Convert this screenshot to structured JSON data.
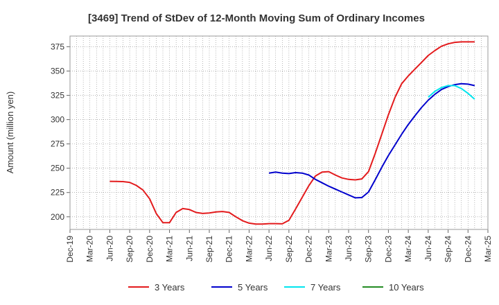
{
  "chart_data": {
    "type": "line",
    "title": "[3469]  Trend of StDev of 12-Month Moving Sum of Ordinary Incomes",
    "xlabel": "",
    "ylabel": "Amount (million yen)",
    "ylim": [
      187,
      386
    ],
    "yticks": [
      200,
      225,
      250,
      275,
      300,
      325,
      350,
      375
    ],
    "xtick_labels": [
      "Dec-19",
      "Mar-20",
      "Jun-20",
      "Sep-20",
      "Dec-20",
      "Mar-21",
      "Jun-21",
      "Sep-21",
      "Dec-21",
      "Mar-22",
      "Jun-22",
      "Sep-22",
      "Dec-22",
      "Mar-23",
      "Jun-23",
      "Sep-23",
      "Dec-23",
      "Mar-24",
      "Jun-24",
      "Sep-24",
      "Dec-24",
      "Mar-25"
    ],
    "x_start": "Dec-19",
    "grid": true,
    "legend_position": "bottom",
    "series": [
      {
        "name": "3 Years",
        "color": "#e31a1c",
        "start": "Jun-20",
        "values": [
          236.5,
          236.4,
          236.2,
          235.4,
          232.3,
          227.5,
          218.5,
          203.5,
          194,
          194,
          204.5,
          208.5,
          207.5,
          204.5,
          203.5,
          204,
          205,
          205.5,
          204.5,
          200,
          196,
          193.5,
          192.5,
          192.5,
          193,
          193,
          192.8,
          196.5,
          208,
          220,
          232,
          242,
          246,
          246.5,
          243,
          240,
          238.5,
          238,
          239,
          246.5,
          265,
          285,
          305,
          323,
          337,
          345,
          352,
          359,
          366,
          371,
          375.5,
          378,
          379.5,
          380,
          380,
          380
        ]
      },
      {
        "name": "5 Years",
        "color": "#0000cd",
        "start": "Jun-22",
        "values": [
          245,
          246,
          245,
          244.5,
          245.5,
          245,
          243,
          238.5,
          235,
          231.5,
          228.5,
          225.5,
          222.5,
          219.5,
          219.8,
          225.5,
          238,
          251,
          263,
          274,
          285,
          295,
          304,
          312.5,
          320,
          326,
          331,
          334,
          336,
          337,
          336.5,
          335
        ]
      },
      {
        "name": "7 Years",
        "color": "#00e5ee",
        "start": "Jun-24",
        "values": [
          323,
          329,
          333,
          335,
          335,
          332,
          327,
          321
        ]
      },
      {
        "name": "10 Years",
        "color": "#228b22",
        "start": "Jun-24",
        "values": []
      }
    ]
  }
}
